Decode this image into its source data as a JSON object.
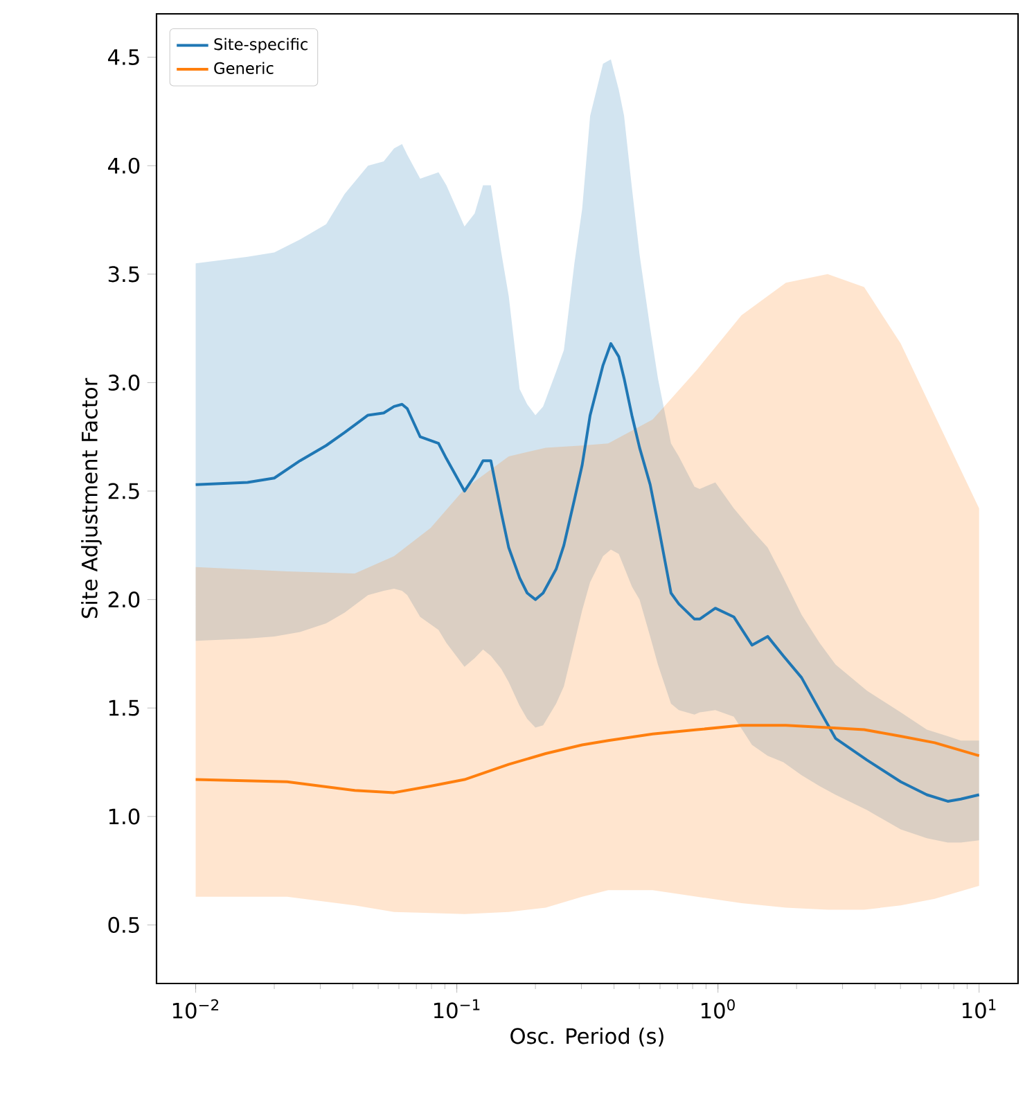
{
  "chart_data": {
    "type": "line",
    "xlabel": "Osc. Period (s)",
    "ylabel": "Site Adjustment Factor",
    "log": "x",
    "legend": "top left",
    "xlim": [
      0.00708,
      14.1
    ],
    "ylim": [
      0.23,
      4.7
    ],
    "xticks": [
      {
        "value": 0.01,
        "label": "10$^{−2}$"
      },
      {
        "value": 0.1,
        "label": "10$^{−1}$"
      },
      {
        "value": 1,
        "label": "10$^{0}$"
      },
      {
        "value": 10,
        "label": "10$^{1}$"
      }
    ],
    "yticks": [
      0.5,
      {
        "value": 1,
        "label": "1.0"
      },
      1.5,
      {
        "value": 2,
        "label": "2.0"
      },
      2.5,
      {
        "value": 3,
        "label": "3.0"
      },
      3.5,
      {
        "value": 4,
        "label": "4.0"
      },
      4.5
    ],
    "series": [
      {
        "name": "Site-specific",
        "color": "#1f77b4",
        "x": [
          0.01,
          0.0158,
          0.02,
          0.0251,
          0.0316,
          0.0372,
          0.0457,
          0.0525,
          0.0575,
          0.0617,
          0.0646,
          0.0724,
          0.0851,
          0.0912,
          0.107,
          0.117,
          0.126,
          0.135,
          0.148,
          0.158,
          0.174,
          0.186,
          0.2,
          0.214,
          0.24,
          0.257,
          0.282,
          0.302,
          0.324,
          0.363,
          0.389,
          0.417,
          0.437,
          0.468,
          0.501,
          0.55,
          0.589,
          0.661,
          0.708,
          0.813,
          0.851,
          0.977,
          1.15,
          1.35,
          1.55,
          1.78,
          2.09,
          2.45,
          2.82,
          3.72,
          5.01,
          6.31,
          7.59,
          8.51,
          10
        ],
        "values": [
          2.53,
          2.54,
          2.56,
          2.64,
          2.71,
          2.77,
          2.85,
          2.86,
          2.89,
          2.9,
          2.88,
          2.75,
          2.72,
          2.65,
          2.5,
          2.57,
          2.64,
          2.64,
          2.4,
          2.24,
          2.1,
          2.03,
          2.0,
          2.03,
          2.14,
          2.25,
          2.46,
          2.62,
          2.85,
          3.08,
          3.18,
          3.12,
          3.02,
          2.85,
          2.7,
          2.53,
          2.35,
          2.03,
          1.98,
          1.91,
          1.91,
          1.96,
          1.92,
          1.79,
          1.83,
          1.74,
          1.64,
          1.49,
          1.36,
          1.26,
          1.16,
          1.1,
          1.07,
          1.08,
          1.1
        ],
        "upper": [
          3.55,
          3.58,
          3.6,
          3.66,
          3.73,
          3.87,
          4.0,
          4.02,
          4.08,
          4.1,
          4.05,
          3.94,
          3.97,
          3.91,
          3.72,
          3.78,
          3.91,
          3.91,
          3.6,
          3.4,
          2.97,
          2.9,
          2.85,
          2.89,
          3.05,
          3.15,
          3.55,
          3.8,
          4.23,
          4.47,
          4.49,
          4.35,
          4.23,
          3.9,
          3.59,
          3.25,
          3.02,
          2.72,
          2.66,
          2.52,
          2.51,
          2.54,
          2.42,
          2.32,
          2.24,
          2.1,
          1.93,
          1.8,
          1.7,
          1.58,
          1.48,
          1.4,
          1.37,
          1.35,
          1.35
        ],
        "lower": [
          1.81,
          1.82,
          1.83,
          1.85,
          1.89,
          1.94,
          2.02,
          2.04,
          2.05,
          2.04,
          2.02,
          1.92,
          1.86,
          1.8,
          1.69,
          1.73,
          1.77,
          1.74,
          1.68,
          1.62,
          1.51,
          1.45,
          1.41,
          1.42,
          1.52,
          1.6,
          1.8,
          1.95,
          2.08,
          2.2,
          2.23,
          2.21,
          2.15,
          2.06,
          2.0,
          1.83,
          1.7,
          1.52,
          1.49,
          1.47,
          1.48,
          1.49,
          1.46,
          1.33,
          1.28,
          1.25,
          1.19,
          1.14,
          1.1,
          1.03,
          0.94,
          0.9,
          0.88,
          0.88,
          0.89
        ]
      },
      {
        "name": "Generic",
        "color": "#ff7f0e",
        "x": [
          0.01,
          0.0224,
          0.0407,
          0.0575,
          0.0794,
          0.107,
          0.158,
          0.219,
          0.302,
          0.38,
          0.562,
          0.832,
          1.23,
          1.82,
          2.63,
          3.63,
          5.01,
          6.76,
          10
        ],
        "values": [
          1.17,
          1.16,
          1.12,
          1.11,
          1.14,
          1.17,
          1.24,
          1.29,
          1.33,
          1.35,
          1.38,
          1.4,
          1.42,
          1.42,
          1.41,
          1.4,
          1.37,
          1.34,
          1.28
        ],
        "upper": [
          2.15,
          2.13,
          2.12,
          2.2,
          2.33,
          2.51,
          2.66,
          2.7,
          2.71,
          2.72,
          2.83,
          3.06,
          3.31,
          3.46,
          3.5,
          3.44,
          3.18,
          2.85,
          2.42
        ],
        "lower": [
          0.63,
          0.63,
          0.59,
          0.56,
          0.555,
          0.55,
          0.56,
          0.58,
          0.63,
          0.66,
          0.66,
          0.63,
          0.6,
          0.58,
          0.57,
          0.57,
          0.59,
          0.62,
          0.68
        ]
      }
    ]
  }
}
